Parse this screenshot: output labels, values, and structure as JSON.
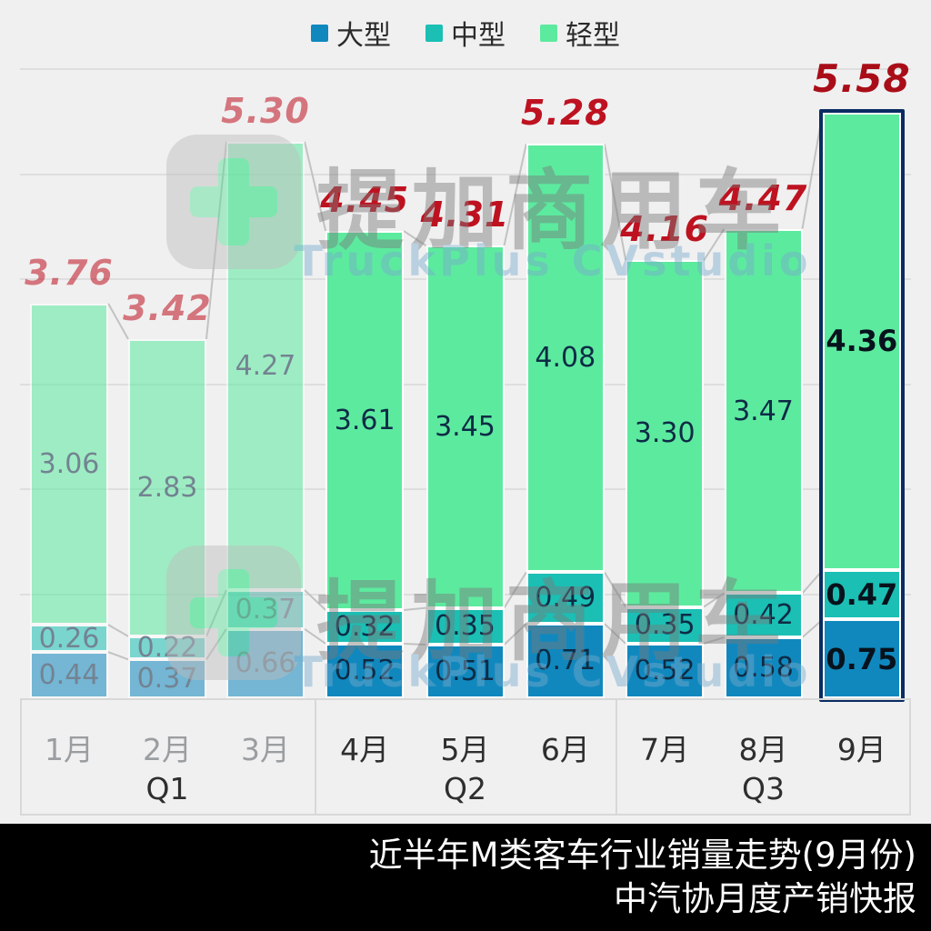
{
  "legend": {
    "items": [
      {
        "label": "大型",
        "color": "#1088BE"
      },
      {
        "label": "中型",
        "color": "#1BBFB4"
      },
      {
        "label": "轻型",
        "color": "#5CEA9F"
      }
    ]
  },
  "chart_data": {
    "type": "bar",
    "stacked": true,
    "title": "近半年M类客车行业销量走势(9月份)",
    "categories": [
      "1月",
      "2月",
      "3月",
      "4月",
      "5月",
      "6月",
      "7月",
      "8月",
      "9月"
    ],
    "series": [
      {
        "name": "大型",
        "color": "#1088BE",
        "values": [
          0.44,
          0.37,
          0.66,
          0.52,
          0.51,
          0.71,
          0.52,
          0.58,
          0.75
        ]
      },
      {
        "name": "中型",
        "color": "#1BBFB4",
        "values": [
          0.26,
          0.22,
          0.37,
          0.32,
          0.35,
          0.49,
          0.35,
          0.42,
          0.47
        ]
      },
      {
        "name": "轻型",
        "color": "#5CEA9F",
        "values": [
          3.06,
          2.83,
          4.27,
          3.61,
          3.45,
          4.08,
          3.3,
          3.47,
          4.36
        ]
      }
    ],
    "totals": [
      "3.76",
      "3.42",
      "5.30",
      "4.45",
      "4.31",
      "5.28",
      "4.16",
      "4.47",
      "5.58"
    ],
    "quarters": [
      {
        "label": "Q1",
        "months": [
          0,
          1,
          2
        ]
      },
      {
        "label": "Q2",
        "months": [
          3,
          4,
          5
        ]
      },
      {
        "label": "Q3",
        "months": [
          6,
          7,
          8
        ]
      }
    ],
    "faded_months": [
      0,
      1,
      2
    ],
    "highlighted_month": 8,
    "ylim": [
      0,
      6
    ],
    "grid": true,
    "legend_position": "top",
    "total_label_color": "#BE1220",
    "highlight_border_color": "#0A2C62",
    "connector_color": "#C2C2C2"
  },
  "watermark": {
    "brand": "提加商用车",
    "subbrand": "TruckPlus CVstudio"
  },
  "footer": {
    "line1": "近半年M类客车行业销量走势(9月份)",
    "line2": "中汽协月度产销快报"
  }
}
